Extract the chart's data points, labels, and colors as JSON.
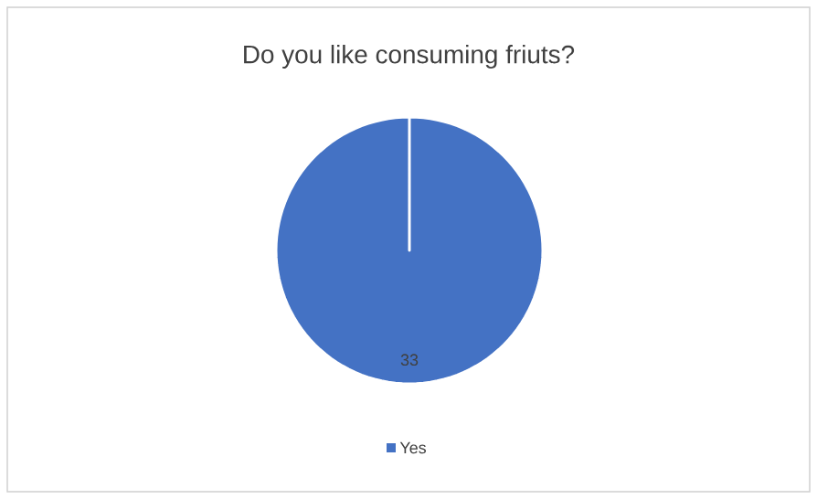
{
  "chart_data": {
    "type": "pie",
    "title": "Do you like consuming friuts?",
    "categories": [
      "Yes"
    ],
    "values": [
      33
    ],
    "colors": [
      "#4472c4"
    ],
    "data_labels": true,
    "legend": "bottom"
  }
}
